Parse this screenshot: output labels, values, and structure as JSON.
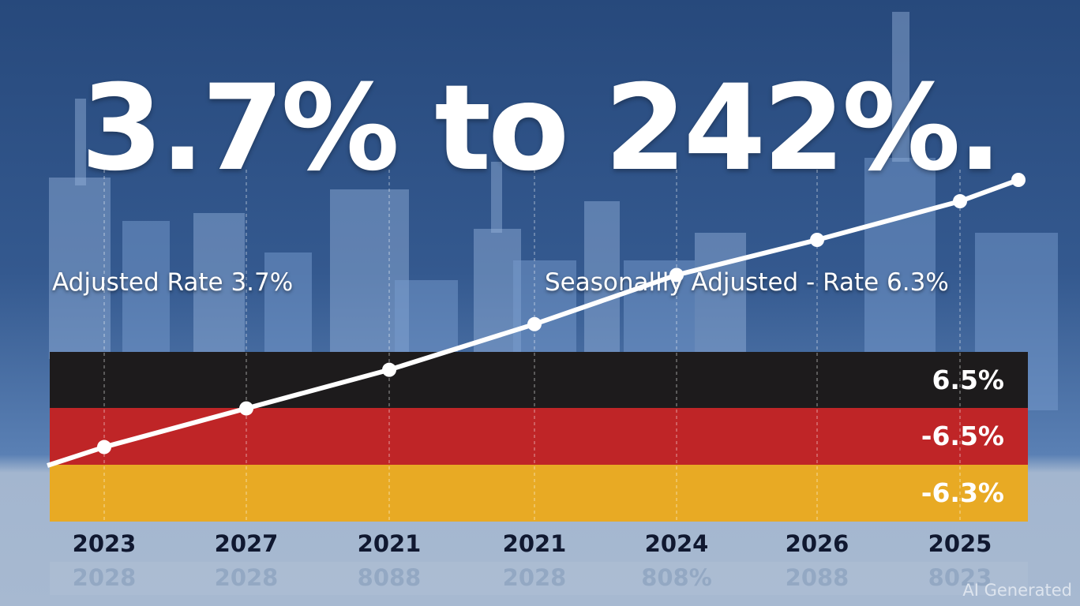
{
  "title": "3.7% to 242%.",
  "labels": {
    "left": "Adjusted Rate 3.7%",
    "right": "Seasonallly Adjusted - Rate 6.3%"
  },
  "bands": [
    {
      "label": "6.5%",
      "color": "#1d1b1c"
    },
    {
      "label": "-6.5%",
      "color": "#bf2527"
    },
    {
      "label": "-6.3%",
      "color": "#e8aa24"
    }
  ],
  "watermark": "AI Generated",
  "chart_data": {
    "type": "line",
    "categories": [
      "2023",
      "2027",
      "2021",
      "2021",
      "2024",
      "2026",
      "2025"
    ],
    "ghost_labels": [
      "2028",
      "2028",
      "8088",
      "2028",
      "808%",
      "2088",
      "8023"
    ],
    "series": [
      {
        "values": [
          0.21,
          0.32,
          0.43,
          0.56,
          0.7,
          0.8,
          0.91
        ],
        "color": "#ffffff"
      }
    ],
    "ylim": [
      0,
      1
    ],
    "grid": "vertical dashed"
  }
}
